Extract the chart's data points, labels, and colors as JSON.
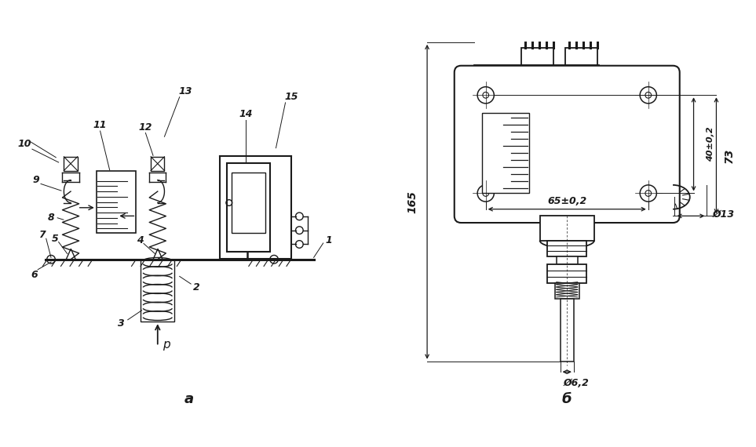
{
  "bg_color": "#ffffff",
  "line_color": "#1a1a1a",
  "fig_width": 9.63,
  "fig_height": 5.7,
  "label_a": "а",
  "label_b": "б",
  "dim_165": "165",
  "dim_73": "73",
  "dim_40": "40±0,2",
  "dim_65": "65±0,2",
  "dim_d13": "Ø13",
  "dim_d62": "Ø6,2",
  "p_label": "p"
}
